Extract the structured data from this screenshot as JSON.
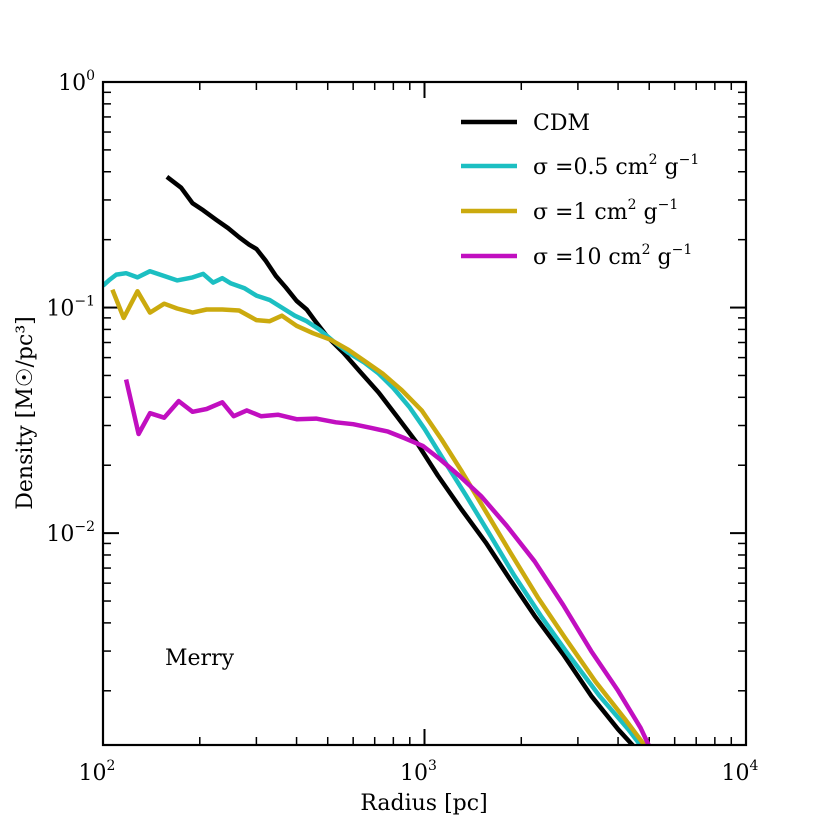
{
  "chart_data": {
    "type": "line",
    "title": "",
    "xlabel": "Radius [pc]",
    "ylabel": "Density [M☉/pc³]",
    "xscale": "log",
    "yscale": "log",
    "xlim": [
      100,
      10000
    ],
    "ylim": [
      0.00115,
      1.0
    ],
    "x_ticks": [
      {
        "base": "10",
        "exp": "2",
        "value": 100
      },
      {
        "base": "10",
        "exp": "3",
        "value": 1000
      },
      {
        "base": "10",
        "exp": "4",
        "value": 10000
      }
    ],
    "y_ticks": [
      {
        "base": "10",
        "exp": "0",
        "value": 1.0
      },
      {
        "base": "10",
        "exp": "−1",
        "value": 0.1
      },
      {
        "base": "10",
        "exp": "−2",
        "value": 0.01
      }
    ],
    "annotation": "Merry",
    "legend_position": "top-right",
    "series": [
      {
        "name": "CDM",
        "legend_label": "CDM",
        "color": "#000000",
        "x": [
          158,
          175,
          190,
          205,
          225,
          245,
          265,
          285,
          300,
          320,
          345,
          370,
          400,
          430,
          460,
          500,
          560,
          630,
          720,
          820,
          950,
          1100,
          1300,
          1550,
          1850,
          2200,
          2700,
          3300,
          4000,
          4700,
          5200
        ],
        "y": [
          0.38,
          0.34,
          0.29,
          0.27,
          0.245,
          0.225,
          0.205,
          0.19,
          0.182,
          0.162,
          0.138,
          0.123,
          0.107,
          0.098,
          0.086,
          0.074,
          0.063,
          0.052,
          0.042,
          0.033,
          0.025,
          0.018,
          0.0128,
          0.0091,
          0.0062,
          0.0043,
          0.0029,
          0.0019,
          0.00135,
          0.00105,
          0.00085
        ]
      },
      {
        "name": "sigma-0.5",
        "legend_label": "σ = 0.5 cm² g⁻¹",
        "legend_parts": {
          "base": "σ =0.5 cm",
          "sup1": "2",
          "mid": " g",
          "sup2": "−1"
        },
        "color": "#1cbfc2",
        "x": [
          100,
          105,
          110,
          118,
          128,
          140,
          155,
          170,
          190,
          205,
          220,
          235,
          250,
          275,
          300,
          330,
          360,
          395,
          430,
          470,
          520,
          580,
          650,
          720,
          800,
          900,
          1000,
          1150,
          1350,
          1600,
          1900,
          2300,
          2800,
          3500,
          4300,
          5200
        ],
        "y": [
          0.125,
          0.133,
          0.14,
          0.142,
          0.136,
          0.145,
          0.138,
          0.132,
          0.136,
          0.141,
          0.129,
          0.135,
          0.128,
          0.122,
          0.113,
          0.108,
          0.1,
          0.092,
          0.087,
          0.08,
          0.071,
          0.063,
          0.057,
          0.051,
          0.044,
          0.036,
          0.029,
          0.021,
          0.0146,
          0.0098,
          0.0065,
          0.0043,
          0.0029,
          0.0019,
          0.00135,
          0.00095
        ]
      },
      {
        "name": "sigma-1",
        "legend_label": "σ = 1 cm² g⁻¹",
        "legend_parts": {
          "base": "σ =1 cm",
          "sup1": "2",
          "mid": " g",
          "sup2": "−1"
        },
        "color": "#cbaa0e",
        "x": [
          107,
          116,
          128,
          140,
          155,
          170,
          190,
          210,
          235,
          265,
          300,
          330,
          360,
          400,
          450,
          510,
          580,
          650,
          740,
          850,
          980,
          1130,
          1300,
          1550,
          1850,
          2250,
          2750,
          3400,
          4200,
          5200
        ],
        "y": [
          0.12,
          0.09,
          0.118,
          0.095,
          0.104,
          0.099,
          0.095,
          0.098,
          0.098,
          0.097,
          0.088,
          0.087,
          0.092,
          0.083,
          0.077,
          0.072,
          0.065,
          0.058,
          0.051,
          0.043,
          0.035,
          0.026,
          0.019,
          0.0125,
          0.0082,
          0.0052,
          0.0034,
          0.0022,
          0.0015,
          0.001
        ]
      },
      {
        "name": "sigma-10",
        "legend_label": "σ = 10 cm² g⁻¹",
        "legend_parts": {
          "base": "σ =10 cm",
          "sup1": "2",
          "mid": " g",
          "sup2": "−1"
        },
        "color": "#c10fc0",
        "x": [
          118,
          129,
          140,
          155,
          172,
          190,
          210,
          235,
          255,
          280,
          310,
          350,
          400,
          460,
          530,
          600,
          680,
          770,
          870,
          990,
          1120,
          1280,
          1500,
          1800,
          2200,
          2700,
          3300,
          4000,
          4700,
          5300
        ],
        "y": [
          0.048,
          0.0275,
          0.034,
          0.0325,
          0.0385,
          0.0345,
          0.0355,
          0.038,
          0.033,
          0.035,
          0.033,
          0.0335,
          0.032,
          0.0322,
          0.031,
          0.0304,
          0.0293,
          0.0282,
          0.0263,
          0.0243,
          0.0212,
          0.018,
          0.0146,
          0.0108,
          0.0075,
          0.0048,
          0.003,
          0.002,
          0.00137,
          0.00095
        ]
      }
    ]
  }
}
